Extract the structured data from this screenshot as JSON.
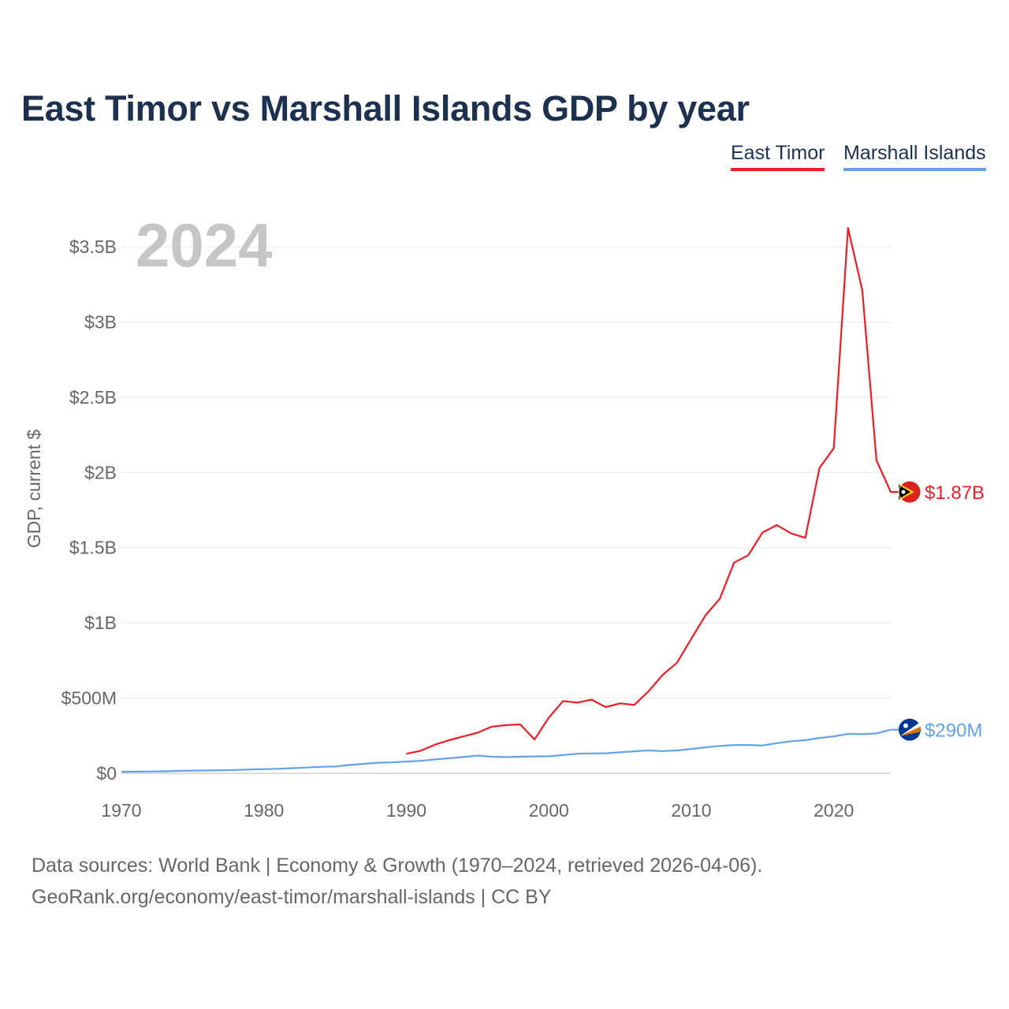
{
  "title": "East Timor vs Marshall Islands GDP by year",
  "legend": [
    {
      "name": "East Timor",
      "color": "#ee1c25"
    },
    {
      "name": "Marshall Islands",
      "color": "#63a2e8"
    }
  ],
  "year_label": "2024",
  "source_lines": [
    "Data sources: World Bank | Economy & Growth (1970–2024, retrieved 2026-04-06).",
    "GeoRank.org/economy/east-timor/marshall-islands | CC BY"
  ],
  "chart_data": {
    "type": "line",
    "title": "East Timor vs Marshall Islands GDP by year",
    "xlabel": "",
    "ylabel": "GDP, current $",
    "xlim": [
      1970,
      2024
    ],
    "ylim": [
      0,
      3700
    ],
    "y_unit": "millions USD",
    "grid": true,
    "legend_position": "top-right",
    "x_ticks": [
      1970,
      1980,
      1990,
      2000,
      2010,
      2020
    ],
    "x_tick_labels": [
      "1970",
      "1980",
      "1990",
      "2000",
      "2010",
      "2020"
    ],
    "y_ticks": [
      0,
      500,
      1000,
      1500,
      2000,
      2500,
      3000,
      3500
    ],
    "y_tick_labels": [
      "$0",
      "$500M",
      "$1B",
      "$1.5B",
      "$2B",
      "$2.5B",
      "$3B",
      "$3.5B"
    ],
    "series": [
      {
        "name": "East Timor",
        "color": "#ee1c25",
        "end_label": "$1.87B",
        "icon": "east-timor-flag-icon",
        "x": [
          1990,
          1991,
          1992,
          1993,
          1994,
          1995,
          1996,
          1997,
          1998,
          1999,
          2000,
          2001,
          2002,
          2003,
          2004,
          2005,
          2006,
          2007,
          2008,
          2009,
          2010,
          2011,
          2012,
          2013,
          2014,
          2015,
          2016,
          2017,
          2018,
          2019,
          2020,
          2021,
          2022,
          2023,
          2024
        ],
        "values": [
          130,
          150,
          190,
          220,
          245,
          270,
          310,
          320,
          325,
          225,
          370,
          480,
          470,
          490,
          440,
          465,
          455,
          545,
          655,
          735,
          895,
          1050,
          1160,
          1400,
          1450,
          1600,
          1650,
          1595,
          1565,
          2030,
          2160,
          3625,
          3210,
          2080,
          1870
        ]
      },
      {
        "name": "Marshall Islands",
        "color": "#63a2e8",
        "end_label": "$290M",
        "icon": "marshall-islands-flag-icon",
        "x": [
          1970,
          1971,
          1972,
          1973,
          1974,
          1975,
          1976,
          1977,
          1978,
          1979,
          1980,
          1981,
          1982,
          1983,
          1984,
          1985,
          1986,
          1987,
          1988,
          1989,
          1990,
          1991,
          1992,
          1993,
          1994,
          1995,
          1996,
          1997,
          1998,
          1999,
          2000,
          2001,
          2002,
          2003,
          2004,
          2005,
          2006,
          2007,
          2008,
          2009,
          2010,
          2011,
          2012,
          2013,
          2014,
          2015,
          2016,
          2017,
          2018,
          2019,
          2020,
          2021,
          2022,
          2023,
          2024
        ],
        "values": [
          10,
          11,
          12,
          13,
          16,
          18,
          19,
          20,
          22,
          25,
          28,
          30,
          34,
          38,
          43,
          45,
          55,
          63,
          70,
          73,
          78,
          83,
          92,
          100,
          108,
          118,
          110,
          108,
          110,
          112,
          113,
          121,
          130,
          132,
          133,
          140,
          146,
          152,
          148,
          152,
          162,
          173,
          182,
          188,
          188,
          185,
          200,
          213,
          220,
          235,
          245,
          262,
          260,
          265,
          290
        ]
      }
    ]
  }
}
